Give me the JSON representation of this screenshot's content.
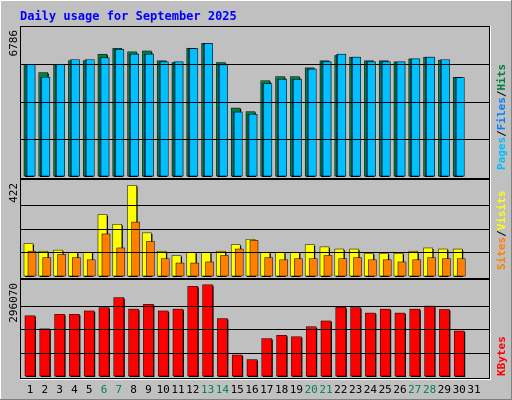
{
  "title": "Daily usage for September 2025",
  "colors": {
    "background": "#c0c0c0",
    "title": "#0000ff",
    "hits": "#008040",
    "files": "#0080ff",
    "pages": "#00c0ff",
    "visits": "#ffff00",
    "sites": "#ff8000",
    "kbytes": "#ff0000",
    "weekend_label": "#00805c"
  },
  "chart_data": [
    {
      "type": "bar",
      "name": "pages-files-hits",
      "ymax_label": "6786",
      "ylim": [
        0,
        6786
      ],
      "categories": [
        "1",
        "2",
        "3",
        "4",
        "5",
        "6",
        "7",
        "8",
        "9",
        "10",
        "11",
        "12",
        "13",
        "14",
        "15",
        "16",
        "17",
        "18",
        "19",
        "20",
        "21",
        "22",
        "23",
        "24",
        "25",
        "26",
        "27",
        "28",
        "29",
        "30",
        "31"
      ],
      "legend": [
        "Pages",
        "Files",
        "Hits"
      ],
      "series": [
        {
          "name": "Hits",
          "values": [
            5225,
            4840,
            5225,
            5395,
            5395,
            5700,
            5975,
            5810,
            5850,
            5390,
            5310,
            5980,
            6210,
            5310,
            3180,
            3010,
            4460,
            4650,
            4650,
            5060,
            5390,
            5640,
            5560,
            5390,
            5390,
            5340,
            5480,
            5560,
            5420,
            4620,
            null
          ]
        },
        {
          "name": "Files",
          "values": [
            5220,
            4620,
            5230,
            5440,
            5440,
            5530,
            5920,
            5700,
            5700,
            5340,
            5340,
            5960,
            6200,
            5200,
            2990,
            2890,
            4320,
            4520,
            4520,
            5000,
            5340,
            5700,
            5560,
            5340,
            5340,
            5340,
            5480,
            5560,
            5440,
            4600,
            null
          ]
        },
        {
          "name": "Pages",
          "values": [
            5220,
            4620,
            5230,
            5440,
            5440,
            5530,
            5920,
            5700,
            5700,
            5340,
            5340,
            5960,
            6200,
            5200,
            2990,
            2890,
            4320,
            4520,
            4520,
            5000,
            5340,
            5700,
            5560,
            5340,
            5340,
            5340,
            5480,
            5560,
            5440,
            4600,
            null
          ]
        }
      ]
    },
    {
      "type": "bar",
      "name": "visits-sites",
      "ymax_label": "422",
      "ylim": [
        0,
        422
      ],
      "categories": [
        "1",
        "2",
        "3",
        "4",
        "5",
        "6",
        "7",
        "8",
        "9",
        "10",
        "11",
        "12",
        "13",
        "14",
        "15",
        "16",
        "17",
        "18",
        "19",
        "20",
        "21",
        "22",
        "23",
        "24",
        "25",
        "26",
        "27",
        "28",
        "29",
        "30",
        "31"
      ],
      "legend": [
        "Sites",
        "Visits"
      ],
      "series": [
        {
          "name": "Visits",
          "values": [
            150,
            115,
            120,
            110,
            110,
            285,
            240,
            420,
            200,
            115,
            95,
            110,
            110,
            115,
            145,
            170,
            110,
            110,
            110,
            145,
            135,
            125,
            125,
            105,
            105,
            105,
            115,
            130,
            125,
            125,
            null
          ]
        },
        {
          "name": "Sites",
          "values": [
            115,
            85,
            100,
            85,
            75,
            195,
            130,
            250,
            160,
            80,
            60,
            60,
            65,
            95,
            125,
            165,
            85,
            75,
            80,
            80,
            95,
            80,
            85,
            75,
            75,
            65,
            75,
            85,
            80,
            80,
            null
          ]
        }
      ]
    },
    {
      "type": "bar",
      "name": "kbytes",
      "ymax_label": "296070",
      "ylim": [
        0,
        296070
      ],
      "categories": [
        "1",
        "2",
        "3",
        "4",
        "5",
        "6",
        "7",
        "8",
        "9",
        "10",
        "11",
        "12",
        "13",
        "14",
        "15",
        "16",
        "17",
        "18",
        "19",
        "20",
        "21",
        "22",
        "23",
        "24",
        "25",
        "26",
        "27",
        "28",
        "29",
        "30",
        "31"
      ],
      "legend": [
        "KBytes"
      ],
      "series": [
        {
          "name": "KBytes",
          "values": [
            198000,
            155000,
            203000,
            203000,
            214000,
            225000,
            258000,
            220000,
            236000,
            214000,
            220000,
            295000,
            300000,
            189000,
            69000,
            54000,
            123000,
            134000,
            129000,
            162000,
            181000,
            226000,
            225000,
            207000,
            220000,
            207000,
            220000,
            230000,
            219000,
            148000,
            null
          ]
        }
      ]
    }
  ],
  "x_labels": [
    "1",
    "2",
    "3",
    "4",
    "5",
    "6",
    "7",
    "8",
    "9",
    "10",
    "11",
    "12",
    "13",
    "14",
    "15",
    "16",
    "17",
    "18",
    "19",
    "20",
    "21",
    "22",
    "23",
    "24",
    "25",
    "26",
    "27",
    "28",
    "29",
    "30",
    "31"
  ],
  "weekend_days": [
    6,
    7,
    13,
    14,
    20,
    21,
    27,
    28
  ]
}
